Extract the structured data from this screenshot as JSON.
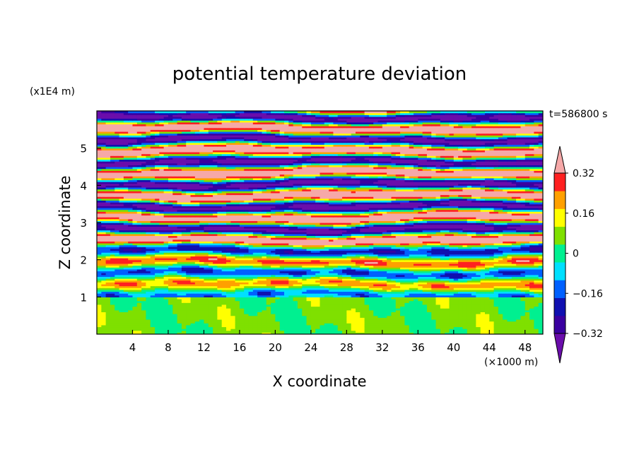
{
  "chart_data": {
    "type": "heatmap",
    "title": "potential temperature deviation",
    "xlabel": "X coordinate",
    "ylabel": "Z coordinate",
    "x_unit": "(×1000 m)",
    "y_unit": "(x1E4 m)",
    "time_label": "t=586800 s",
    "xlim": [
      0,
      50
    ],
    "ylim": [
      0,
      6
    ],
    "x_ticks": [
      4,
      8,
      12,
      16,
      20,
      24,
      28,
      32,
      36,
      40,
      44,
      48
    ],
    "y_ticks": [
      1,
      2,
      3,
      4,
      5
    ],
    "colorbar": {
      "levels": [
        -0.4,
        -0.32,
        -0.24,
        -0.16,
        -0.08,
        0,
        0.08,
        0.16,
        0.24,
        0.32,
        0.4
      ],
      "tick_labels": [
        "0.32",
        "0.16",
        "0",
        "−0.16",
        "−0.32"
      ],
      "tick_values": [
        0.32,
        0.16,
        0,
        -0.16,
        -0.32
      ],
      "colors": [
        "#6a0dab",
        "#3a00a0",
        "#1010b0",
        "#0060ff",
        "#00e0ff",
        "#00f090",
        "#7fe000",
        "#ffff00",
        "#ffa000",
        "#ff2020",
        "#f6a8a8"
      ]
    },
    "field_description": "horizontally banded deviation field; strong alternating +/- layers above z≈2.5, weaker near-zero values below z≈1"
  }
}
